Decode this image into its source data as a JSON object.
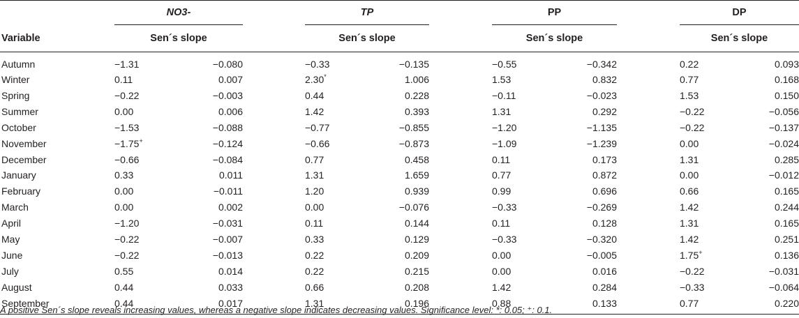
{
  "headers": {
    "variable": "Variable",
    "groups": [
      {
        "name": "NO3-",
        "italic": true,
        "sub": "Sen´s slope"
      },
      {
        "name": "TP",
        "italic": true,
        "sub": "Sen´s slope"
      },
      {
        "name": "PP",
        "italic": false,
        "sub": "Sen´s slope"
      },
      {
        "name": "DP",
        "italic": false,
        "sub": "Sen´s slope"
      }
    ]
  },
  "rows": [
    {
      "label": "Autumn",
      "cells": [
        [
          "−1.31",
          ""
        ],
        [
          "−0.080",
          ""
        ],
        [
          "−0.33",
          ""
        ],
        [
          "−0.135",
          ""
        ],
        [
          "−0.55",
          ""
        ],
        [
          "−0.342",
          ""
        ],
        [
          "0.22",
          ""
        ],
        [
          "0.093",
          ""
        ]
      ]
    },
    {
      "label": "Winter",
      "cells": [
        [
          "0.11",
          ""
        ],
        [
          "0.007",
          ""
        ],
        [
          "2.30",
          "*"
        ],
        [
          "1.006",
          ""
        ],
        [
          "1.53",
          ""
        ],
        [
          "0.832",
          ""
        ],
        [
          "0.77",
          ""
        ],
        [
          "0.168",
          ""
        ]
      ]
    },
    {
      "label": "Spring",
      "cells": [
        [
          "−0.22",
          ""
        ],
        [
          "−0.003",
          ""
        ],
        [
          "0.44",
          ""
        ],
        [
          "0.228",
          ""
        ],
        [
          "−0.11",
          ""
        ],
        [
          "−0.023",
          ""
        ],
        [
          "1.53",
          ""
        ],
        [
          "0.150",
          ""
        ]
      ]
    },
    {
      "label": "Summer",
      "cells": [
        [
          "0.00",
          ""
        ],
        [
          "0.006",
          ""
        ],
        [
          "1.42",
          ""
        ],
        [
          "0.393",
          ""
        ],
        [
          "1.31",
          ""
        ],
        [
          "0.292",
          ""
        ],
        [
          "−0.22",
          ""
        ],
        [
          "−0.056",
          ""
        ]
      ]
    },
    {
      "label": "October",
      "cells": [
        [
          "−1.53",
          ""
        ],
        [
          "−0.088",
          ""
        ],
        [
          "−0.77",
          ""
        ],
        [
          "−0.855",
          ""
        ],
        [
          "−1.20",
          ""
        ],
        [
          "−1.135",
          ""
        ],
        [
          "−0.22",
          ""
        ],
        [
          "−0.137",
          ""
        ]
      ]
    },
    {
      "label": "November",
      "cells": [
        [
          "−1.75",
          "+"
        ],
        [
          "−0.124",
          ""
        ],
        [
          "−0.66",
          ""
        ],
        [
          "−0.873",
          ""
        ],
        [
          "−1.09",
          ""
        ],
        [
          "−1.239",
          ""
        ],
        [
          "0.00",
          ""
        ],
        [
          "−0.024",
          ""
        ]
      ]
    },
    {
      "label": "December",
      "cells": [
        [
          "−0.66",
          ""
        ],
        [
          "−0.084",
          ""
        ],
        [
          "0.77",
          ""
        ],
        [
          "0.458",
          ""
        ],
        [
          "0.11",
          ""
        ],
        [
          "0.173",
          ""
        ],
        [
          "1.31",
          ""
        ],
        [
          "0.285",
          ""
        ]
      ]
    },
    {
      "label": "January",
      "cells": [
        [
          "0.33",
          ""
        ],
        [
          "0.011",
          ""
        ],
        [
          "1.31",
          ""
        ],
        [
          "1.659",
          ""
        ],
        [
          "0.77",
          ""
        ],
        [
          "0.872",
          ""
        ],
        [
          "0.00",
          ""
        ],
        [
          "−0.012",
          ""
        ]
      ]
    },
    {
      "label": "February",
      "cells": [
        [
          "0.00",
          ""
        ],
        [
          "−0.011",
          ""
        ],
        [
          "1.20",
          ""
        ],
        [
          "0.939",
          ""
        ],
        [
          "0.99",
          ""
        ],
        [
          "0.696",
          ""
        ],
        [
          "0.66",
          ""
        ],
        [
          "0.165",
          ""
        ]
      ]
    },
    {
      "label": "March",
      "cells": [
        [
          "0.00",
          ""
        ],
        [
          "0.002",
          ""
        ],
        [
          "0.00",
          ""
        ],
        [
          "−0.076",
          ""
        ],
        [
          "−0.33",
          ""
        ],
        [
          "−0.269",
          ""
        ],
        [
          "1.42",
          ""
        ],
        [
          "0.244",
          ""
        ]
      ]
    },
    {
      "label": "April",
      "cells": [
        [
          "−1.20",
          ""
        ],
        [
          "−0.031",
          ""
        ],
        [
          "0.11",
          ""
        ],
        [
          "0.144",
          ""
        ],
        [
          "0.11",
          ""
        ],
        [
          "0.128",
          ""
        ],
        [
          "1.31",
          ""
        ],
        [
          "0.165",
          ""
        ]
      ]
    },
    {
      "label": "May",
      "cells": [
        [
          "−0.22",
          ""
        ],
        [
          "−0.007",
          ""
        ],
        [
          "0.33",
          ""
        ],
        [
          "0.129",
          ""
        ],
        [
          "−0.33",
          ""
        ],
        [
          "−0.320",
          ""
        ],
        [
          "1.42",
          ""
        ],
        [
          "0.251",
          ""
        ]
      ]
    },
    {
      "label": "June",
      "cells": [
        [
          "−0.22",
          ""
        ],
        [
          "−0.013",
          ""
        ],
        [
          "0.22",
          ""
        ],
        [
          "0.209",
          ""
        ],
        [
          "0.00",
          ""
        ],
        [
          "−0.005",
          ""
        ],
        [
          "1.75",
          "+"
        ],
        [
          "0.136",
          ""
        ]
      ]
    },
    {
      "label": "July",
      "cells": [
        [
          "0.55",
          ""
        ],
        [
          "0.014",
          ""
        ],
        [
          "0.22",
          ""
        ],
        [
          "0.215",
          ""
        ],
        [
          "0.00",
          ""
        ],
        [
          "0.016",
          ""
        ],
        [
          "−0.22",
          ""
        ],
        [
          "−0.031",
          ""
        ]
      ]
    },
    {
      "label": "August",
      "cells": [
        [
          "0.44",
          ""
        ],
        [
          "0.033",
          ""
        ],
        [
          "0.66",
          ""
        ],
        [
          "0.208",
          ""
        ],
        [
          "1.42",
          ""
        ],
        [
          "0.284",
          ""
        ],
        [
          "−0.33",
          ""
        ],
        [
          "−0.064",
          ""
        ]
      ]
    },
    {
      "label": "September",
      "cells": [
        [
          "0.44",
          ""
        ],
        [
          "0.017",
          ""
        ],
        [
          "1.31",
          ""
        ],
        [
          "0.196",
          ""
        ],
        [
          "0.88",
          ""
        ],
        [
          "0.133",
          ""
        ],
        [
          "0.77",
          ""
        ],
        [
          "0.220",
          ""
        ]
      ]
    }
  ],
  "footnote": "A positive Sen´s slope reveals increasing values, whereas a negative slope indicates decreasing values. Significance level: *: 0.05; ⁺: 0.1."
}
